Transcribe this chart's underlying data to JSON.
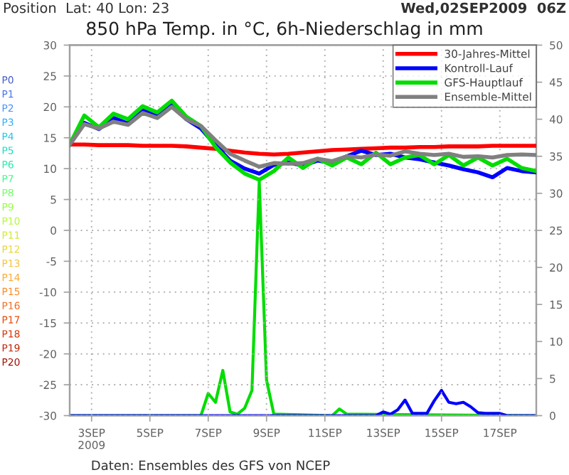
{
  "chart_data": {
    "type": "line",
    "title": "850 hPa Temp. in °C, 6h-Niederschlag in mm",
    "annotations": [
      "Position  Lat: 40 Lon: 23",
      "Wed,02SEP2009  06Z",
      "Daten: Ensembles des GFS von NCEP",
      "P0",
      "P1",
      "P2",
      "P3",
      "P4",
      "P5",
      "P6",
      "P7",
      "P8",
      "P9",
      "P10",
      "P11",
      "P12",
      "P13",
      "P14",
      "P15",
      "P16",
      "P17",
      "P18",
      "P19",
      "P20"
    ],
    "x": [
      "2009-09-02T06:00",
      "2009-09-02T18:00",
      "2009-09-03T06:00",
      "2009-09-03T18:00",
      "2009-09-04T06:00",
      "2009-09-04T18:00",
      "2009-09-05T06:00",
      "2009-09-05T18:00",
      "2009-09-06T06:00",
      "2009-09-06T18:00",
      "2009-09-07T06:00",
      "2009-09-07T18:00",
      "2009-09-08T06:00",
      "2009-09-08T18:00",
      "2009-09-09T06:00",
      "2009-09-09T18:00",
      "2009-09-10T06:00",
      "2009-09-10T18:00",
      "2009-09-11T06:00",
      "2009-09-11T18:00",
      "2009-09-12T06:00",
      "2009-09-12T18:00",
      "2009-09-13T06:00",
      "2009-09-13T18:00",
      "2009-09-14T06:00",
      "2009-09-14T18:00",
      "2009-09-15T06:00",
      "2009-09-15T18:00",
      "2009-09-16T06:00",
      "2009-09-16T18:00",
      "2009-09-17T06:00",
      "2009-09-17T18:00",
      "2009-09-18T06:00"
    ],
    "series": [
      {
        "name": "30-Jahres-Mittel",
        "color": "#ff0000",
        "values": [
          13.9,
          13.9,
          13.8,
          13.8,
          13.8,
          13.7,
          13.7,
          13.7,
          13.6,
          13.4,
          13.2,
          12.9,
          12.6,
          12.4,
          12.3,
          12.4,
          12.6,
          12.8,
          13.0,
          13.1,
          13.2,
          13.3,
          13.4,
          13.4,
          13.5,
          13.5,
          13.6,
          13.6,
          13.6,
          13.7,
          13.7,
          13.7,
          13.7
        ]
      },
      {
        "name": "Kontroll-Lauf",
        "color": "#0000ff",
        "values": [
          13.9,
          17.4,
          16.4,
          18.2,
          17.3,
          19.6,
          18.5,
          20.3,
          18.0,
          16.5,
          13.8,
          11.3,
          10.0,
          9.2,
          10.6,
          11.0,
          10.5,
          11.3,
          10.9,
          12.0,
          12.9,
          12.2,
          12.4,
          11.8,
          11.5,
          11.0,
          10.5,
          9.9,
          9.4,
          8.6,
          10.1,
          9.6,
          9.4
        ]
      },
      {
        "name": "GFS-Hauptlauf",
        "color": "#00dd00",
        "values": [
          13.9,
          18.6,
          16.7,
          18.9,
          18.0,
          20.1,
          19.1,
          21.0,
          18.4,
          16.9,
          13.5,
          11.0,
          9.2,
          8.2,
          9.6,
          11.8,
          10.1,
          11.6,
          10.5,
          11.8,
          10.7,
          12.6,
          10.7,
          11.8,
          12.2,
          10.7,
          12.2,
          10.5,
          11.8,
          10.5,
          11.6,
          10.1,
          9.6
        ]
      },
      {
        "name": "Ensemble-Mittel",
        "color": "#808080",
        "values": [
          13.9,
          17.2,
          16.5,
          17.6,
          17.1,
          19.0,
          18.2,
          20.0,
          18.0,
          16.9,
          14.6,
          12.4,
          11.3,
          10.3,
          10.9,
          10.8,
          10.9,
          11.6,
          11.2,
          12.0,
          11.8,
          12.3,
          12.1,
          12.8,
          12.4,
          12.2,
          12.4,
          11.9,
          12.0,
          11.8,
          12.2,
          12.3,
          12.2
        ]
      },
      {
        "axis": "y2",
        "color": "#00dd00",
        "x": [
          "2009-09-02T06:00",
          "2009-09-06T18:00",
          "2009-09-07T00:00",
          "2009-09-07T06:00",
          "2009-09-07T12:00",
          "2009-09-07T18:00",
          "2009-09-08T00:00",
          "2009-09-08T06:00",
          "2009-09-08T12:00",
          "2009-09-08T18:00",
          "2009-09-09T00:00",
          "2009-09-09T06:00",
          "2009-09-11T06:00",
          "2009-09-11T12:00",
          "2009-09-11T18:00",
          "2009-09-18T06:00"
        ],
        "values": [
          0,
          0,
          3.0,
          1.8,
          6.1,
          0.5,
          0.2,
          1.0,
          3.4,
          31.6,
          4.8,
          0.2,
          0,
          0.9,
          0.2,
          0
        ]
      },
      {
        "axis": "y2",
        "color": "#0000ff",
        "x": [
          "2009-09-02T06:00",
          "2009-09-12T18:00",
          "2009-09-13T00:00",
          "2009-09-13T06:00",
          "2009-09-13T12:00",
          "2009-09-13T18:00",
          "2009-09-14T00:00",
          "2009-09-14T06:00",
          "2009-09-14T12:00",
          "2009-09-14T18:00",
          "2009-09-15T00:00",
          "2009-09-15T06:00",
          "2009-09-15T12:00",
          "2009-09-15T18:00",
          "2009-09-16T00:00",
          "2009-09-16T06:00",
          "2009-09-16T12:00",
          "2009-09-16T18:00",
          "2009-09-17T00:00",
          "2009-09-17T06:00",
          "2009-09-18T06:00"
        ],
        "values": [
          0,
          0,
          0.5,
          0.2,
          0.8,
          2.1,
          0.3,
          0.3,
          0.3,
          2.0,
          3.4,
          1.8,
          1.6,
          1.8,
          1.2,
          0.4,
          0.3,
          0.3,
          0.3,
          0,
          0
        ]
      }
    ],
    "xlim": [
      "2009-09-02T06:00",
      "2009-09-18T06:00"
    ],
    "xticks": [
      {
        "value": "2009-09-03",
        "label": "3SEP\n2009"
      },
      {
        "value": "2009-09-05",
        "label": "5SEP"
      },
      {
        "value": "2009-09-07",
        "label": "7SEP"
      },
      {
        "value": "2009-09-09",
        "label": "9SEP"
      },
      {
        "value": "2009-09-11",
        "label": "11SEP"
      },
      {
        "value": "2009-09-13",
        "label": "13SEP"
      },
      {
        "value": "2009-09-15",
        "label": "15SEP"
      },
      {
        "value": "2009-09-17",
        "label": "17SEP"
      }
    ],
    "ylim": [
      -30,
      30
    ],
    "yticks": [
      -30,
      -25,
      -20,
      -15,
      -10,
      -5,
      0,
      5,
      10,
      15,
      20,
      25,
      30
    ],
    "y2lim": [
      0,
      50
    ],
    "y2ticks": [
      0,
      5,
      10,
      15,
      20,
      25,
      30,
      35,
      40,
      45,
      50
    ],
    "grid": true,
    "legend": "top right",
    "line_style": "solid",
    "marker": "none"
  }
}
